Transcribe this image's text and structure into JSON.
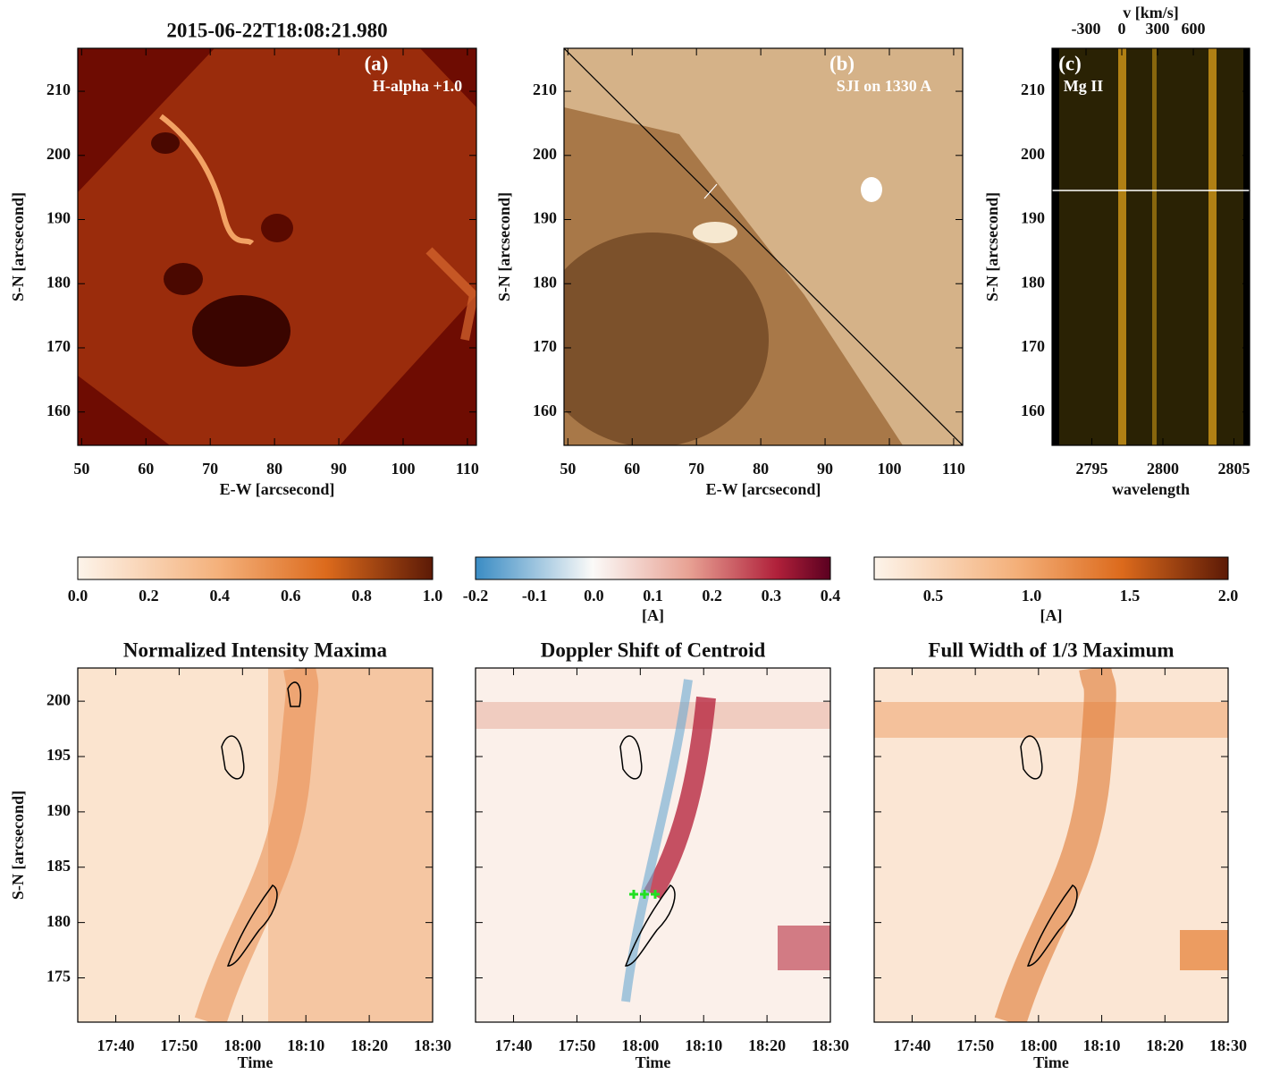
{
  "chart_data": [
    {
      "type": "image",
      "title": "2015-06-22T18:08:21.980",
      "panel_label": "(a)",
      "annotation": "H-alpha +1.0",
      "xlabel": "E-W [arcsecond]",
      "ylabel": "S-N [arcsecond]",
      "xlim": [
        49.4,
        111.4
      ],
      "xticks": [
        50,
        60,
        70,
        80,
        90,
        100,
        110
      ],
      "ylim": [
        154.8,
        216.7
      ],
      "yticks": [
        160,
        170,
        180,
        190,
        200,
        210
      ]
    },
    {
      "type": "image",
      "panel_label": "(b)",
      "annotation": "SJI on 1330 A",
      "xlabel": "E-W [arcsecond]",
      "ylabel": "S-N [arcsecond]",
      "xlim": [
        49.4,
        111.4
      ],
      "xticks": [
        50,
        60,
        70,
        80,
        90,
        100,
        110
      ],
      "ylim": [
        154.8,
        216.7
      ],
      "yticks": [
        160,
        170,
        180,
        190,
        200,
        210
      ]
    },
    {
      "type": "image",
      "panel_label": "(c)",
      "annotation": "Mg II",
      "xlabel": "wavelength",
      "ylabel": "S-N [arcsecond]",
      "x2label": "v [km/s]",
      "xlim": [
        2792.2,
        2806.1
      ],
      "xticks": [
        2795,
        2800,
        2805
      ],
      "x2lim": [
        -585,
        1072
      ],
      "x2ticks": [
        -300,
        0,
        300,
        600
      ],
      "ylim": [
        154.8,
        216.7
      ],
      "yticks": [
        160,
        170,
        180,
        190,
        200,
        210
      ]
    },
    {
      "type": "colorbar",
      "xlim": [
        0,
        1
      ],
      "xticks": [
        {
          "value": 0,
          "label": "0.0"
        },
        0.2,
        0.4,
        0.6,
        0.8,
        {
          "value": 1,
          "label": "1.0"
        }
      ]
    },
    {
      "type": "colorbar",
      "xlabel": "[A]",
      "xlim": [
        -0.2,
        0.4
      ],
      "xticks": [
        -0.2,
        -0.1,
        {
          "value": 0,
          "label": "0.0"
        },
        0.1,
        0.2,
        0.3,
        0.4
      ]
    },
    {
      "type": "colorbar",
      "xlabel": "[A]",
      "xlim": [
        0.2,
        2.0
      ],
      "xticks": [
        0.5,
        {
          "value": 1,
          "label": "1.0"
        },
        1.5,
        {
          "value": 2,
          "label": "2.0"
        }
      ]
    },
    {
      "type": "image",
      "title": "Normalized Intensity Maxima",
      "xlabel": "Time",
      "ylabel": "S-N [arcsecond]",
      "xlim": [
        1054,
        1110
      ],
      "xticks": [
        {
          "value": 1060,
          "label": "17:40"
        },
        {
          "value": 1070,
          "label": "17:50"
        },
        {
          "value": 1080,
          "label": "18:00"
        },
        {
          "value": 1090,
          "label": "18:10"
        },
        {
          "value": 1100,
          "label": "18:20"
        },
        {
          "value": 1110,
          "label": "18:30"
        }
      ],
      "ylim": [
        171,
        203
      ],
      "yticks": [
        175,
        180,
        185,
        190,
        195,
        200
      ],
      "ytick_labels": true
    },
    {
      "type": "image",
      "title": "Doppler Shift of Centroid",
      "xlabel": "Time",
      "xlim": [
        1054,
        1110
      ],
      "xticks": [
        {
          "value": 1060,
          "label": "17:40"
        },
        {
          "value": 1070,
          "label": "17:50"
        },
        {
          "value": 1080,
          "label": "18:00"
        },
        {
          "value": 1090,
          "label": "18:10"
        },
        {
          "value": 1100,
          "label": "18:20"
        },
        {
          "value": 1110,
          "label": "18:30"
        }
      ],
      "ylim": [
        171,
        203
      ],
      "yticks": [
        175,
        180,
        185,
        190,
        195,
        200
      ],
      "ytick_labels": false
    },
    {
      "type": "image",
      "title": "Full Width of 1/3 Maximum",
      "xlabel": "Time",
      "xlim": [
        1054,
        1110
      ],
      "xticks": [
        {
          "value": 1060,
          "label": "17:40"
        },
        {
          "value": 1070,
          "label": "17:50"
        },
        {
          "value": 1080,
          "label": "18:00"
        },
        {
          "value": 1090,
          "label": "18:10"
        },
        {
          "value": 1100,
          "label": "18:20"
        },
        {
          "value": 1110,
          "label": "18:30"
        }
      ],
      "ylim": [
        171,
        203
      ],
      "yticks": [
        175,
        180,
        185,
        190,
        195,
        200
      ],
      "ytick_labels": false
    }
  ]
}
